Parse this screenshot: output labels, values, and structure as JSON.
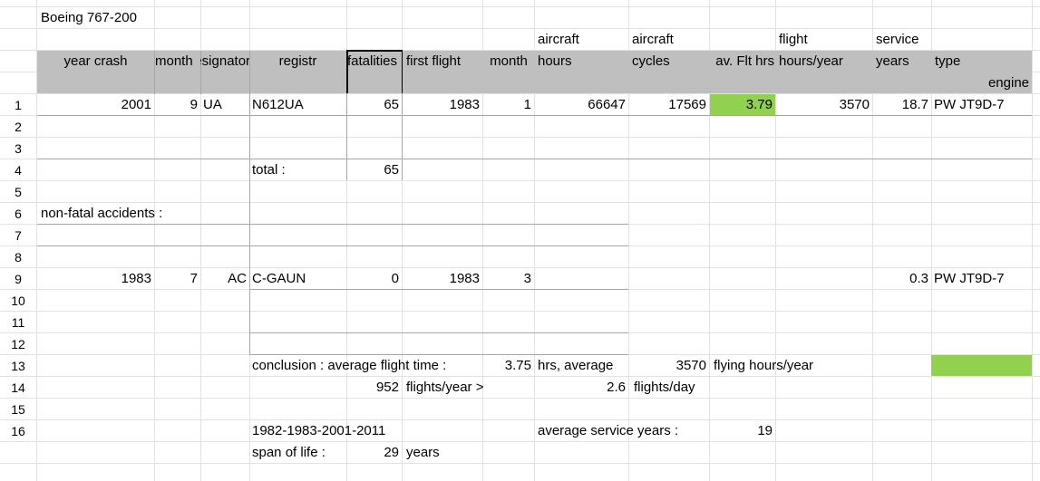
{
  "title": "Boeing 767-200",
  "row_numbers": [
    "1",
    "2",
    "3",
    "4",
    "5",
    "6",
    "7",
    "8",
    "9",
    "10",
    "11",
    "12",
    "13",
    "14",
    "15",
    "16"
  ],
  "headers": {
    "top": {
      "aircraft_hours": "aircraft",
      "aircraft_cycles": "aircraft",
      "flight_hours": "flight",
      "service_years": "service"
    },
    "main": {
      "year_crash": "year crash",
      "month": "month",
      "designator": "designator",
      "registr": "registr",
      "fatalities": "fatalities",
      "first_flight": "first flight",
      "month2": "month",
      "aircraft_hours": "hours",
      "aircraft_cycles": "cycles",
      "avg_flt_hrs": "av. Flt hrs",
      "flight_hours": "hours/year",
      "service_years": "years",
      "type": "type"
    },
    "sub": {
      "engine": "engine"
    }
  },
  "row1": {
    "year": "2001",
    "month": "9",
    "designator": "UA",
    "registr": "N612UA",
    "fatalities": "65",
    "first_flight": "1983",
    "month2": "1",
    "hours": "66647",
    "cycles": "17569",
    "avg": "3.79",
    "flight_hours": "3570",
    "service_years": "18.7",
    "engine": "PW JT9D-7"
  },
  "total": {
    "label": "total :",
    "value": "65"
  },
  "nonfatal_label": "non-fatal accidents :",
  "row9": {
    "year": "1983",
    "month": "7",
    "designator": "AC",
    "registr": "C-GAUN",
    "fatalities": "0",
    "first_flight": "1983",
    "month2": "3",
    "service_years": "0.3",
    "engine": "PW JT9D-7"
  },
  "conclusion": {
    "label": "conclusion : average flight time :",
    "avg_flight_time": "3.75",
    "hrs_average": "hrs, average",
    "hours_year": "3570",
    "flying_label": "flying hours/year",
    "flights_year": "952",
    "flights_year_label": "flights/year >",
    "flights_day": "2.6",
    "flights_day_label": "flights/day"
  },
  "span": {
    "years_range": "1982-1983-2001-2011",
    "avg_service_label": "average service years :",
    "avg_service_value": "19",
    "span_label": "span of life :",
    "span_value": "29",
    "span_unit": "years"
  },
  "colors": {
    "header_gray": "#bfbfbf",
    "highlight_green": "#92d050",
    "grid": "#e2e2e2"
  }
}
